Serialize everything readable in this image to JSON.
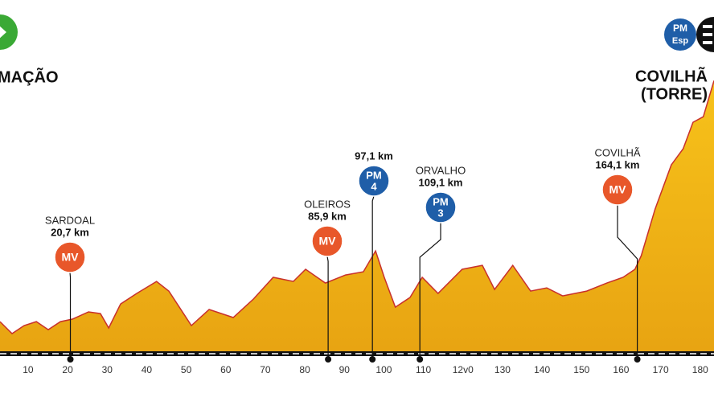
{
  "chart_data": {
    "type": "area",
    "start_label": "MAÇÃO",
    "finish_label": [
      "COVILHÃ",
      "(TORRE)"
    ],
    "finish_badge": [
      "PM",
      "Esp"
    ],
    "x": [
      2.9,
      5.95,
      9,
      12.1,
      15.1,
      18.2,
      21.2,
      25.3,
      28.3,
      30.4,
      33.4,
      37.5,
      42.5,
      45.6,
      51.3,
      55.8,
      61.9,
      67,
      72,
      77.1,
      80.2,
      85.2,
      90.3,
      94.8,
      97.9,
      100.1,
      102.9,
      106.6,
      109.7,
      113.7,
      119.8,
      124.9,
      128,
      132.6,
      137.1,
      141.2,
      145.2,
      151.3,
      156.4,
      160.5,
      163.5,
      165.1,
      168.6,
      172.7,
      175.7,
      178.2,
      180.8,
      183.5
    ],
    "values": [
      218,
      130,
      189,
      218,
      159,
      218,
      236,
      289,
      277,
      171,
      348,
      425,
      513,
      442,
      189,
      307,
      248,
      384,
      543,
      513,
      602,
      501,
      560,
      584,
      737,
      543,
      324,
      395,
      543,
      425,
      602,
      631,
      454,
      631,
      442,
      466,
      407,
      442,
      501,
      543,
      602,
      702,
      1044,
      1369,
      1487,
      1682,
      1723,
      1988
    ],
    "xlim": [
      2.9,
      183.5
    ],
    "ylim": [
      0,
      2580
    ],
    "xticks": [
      10,
      20,
      30,
      40,
      50,
      60,
      70,
      80,
      90,
      100,
      110,
      {
        "value": 120,
        "label": "12v0"
      },
      130,
      140,
      150,
      160,
      170,
      180
    ],
    "color": "#f2b705",
    "line_color": "#c8302c",
    "markers": [
      {
        "place": "SARDOAL",
        "km": {
          "value": 20.7,
          "label": "20,7 km"
        },
        "badge": [
          "MV"
        ],
        "color": "#e8572a"
      },
      {
        "place": "OLEIROS",
        "km": {
          "value": 85.9,
          "label": "85,9 km"
        },
        "badge": [
          "MV"
        ],
        "color": "#e8572a"
      },
      {
        "km": {
          "value": 97.1,
          "label": "97,1 km"
        },
        "badge": [
          "PM",
          "4"
        ],
        "color": "#1f5ea8"
      },
      {
        "place": "ORVALHO",
        "km": {
          "value": 109.1,
          "label": "109,1 km"
        },
        "badge": [
          "PM",
          "3"
        ],
        "color": "#1f5ea8"
      },
      {
        "place": "COVILHÃ",
        "km": {
          "value": 164.1,
          "label": "164,1 km"
        },
        "badge": [
          "MV"
        ],
        "color": "#e8572a"
      }
    ]
  }
}
